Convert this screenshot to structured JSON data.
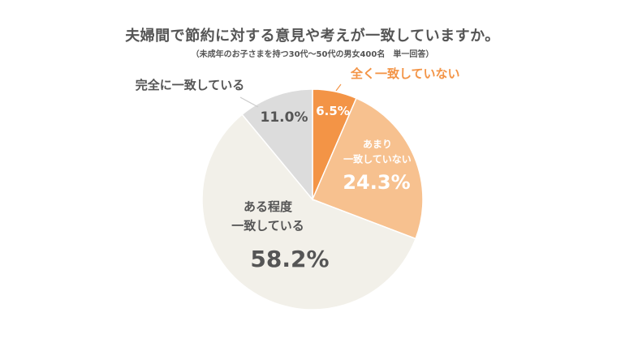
{
  "chart_data": {
    "type": "pie",
    "title": "夫婦間で節約に対する意見や考えが一致していますか。",
    "subtitle": "（未成年のお子さまを持つ30代〜50代の男女400名　単一回答）",
    "slices": [
      {
        "label": "全く一致していない",
        "pct_label": "6.5%",
        "value": 6.5,
        "color": "#f39446",
        "text_color": "#f39446",
        "pct_color": "#ffffff"
      },
      {
        "label": "あまり\n一致していない",
        "pct_label": "24.3%",
        "value": 24.3,
        "color": "#f7c18f",
        "text_color": "#ffffff",
        "pct_color": "#ffffff"
      },
      {
        "label": "ある程度\n一致している",
        "pct_label": "58.2%",
        "value": 58.2,
        "color": "#f2f0e9",
        "text_color": "#555555",
        "pct_color": "#555555"
      },
      {
        "label": "完全に一致している",
        "pct_label": "11.0%",
        "value": 11.0,
        "color": "#dcdcdc",
        "text_color": "#555555",
        "pct_color": "#555555"
      }
    ]
  }
}
